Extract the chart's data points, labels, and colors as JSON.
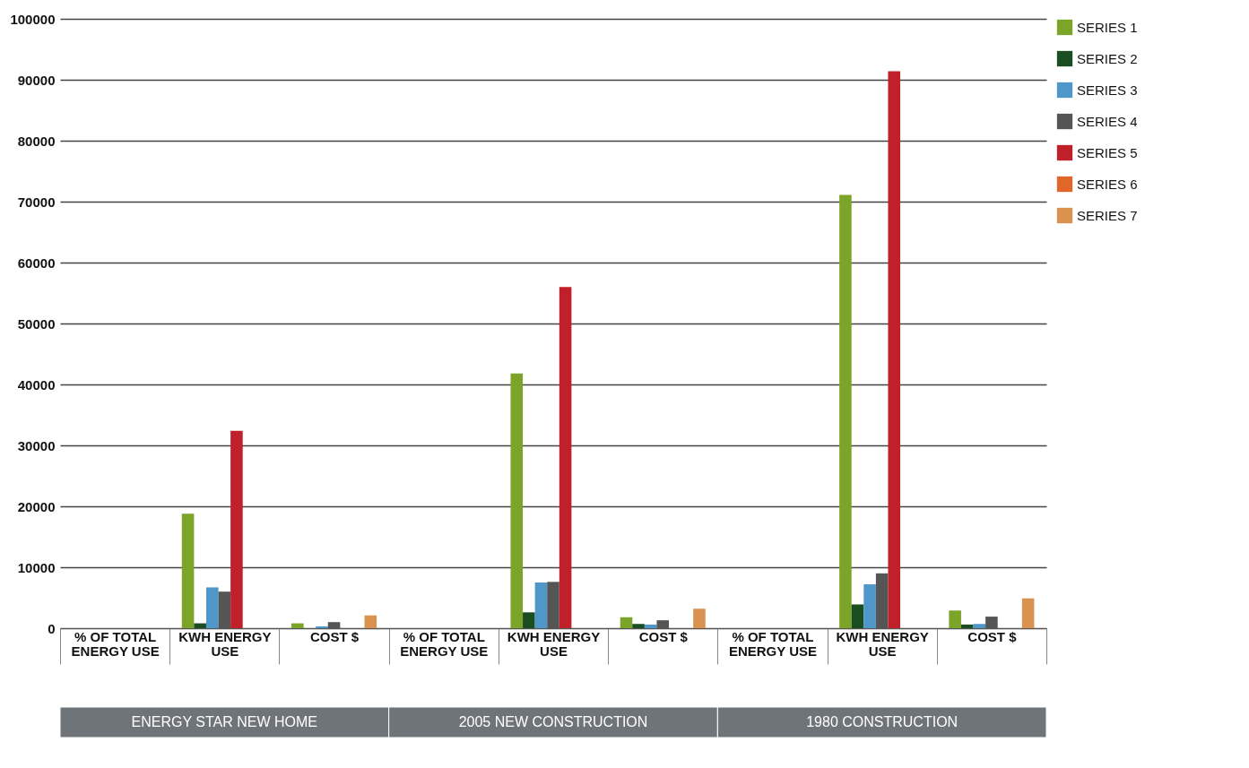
{
  "chart_data": {
    "type": "bar",
    "categories": [
      "% OF TOTAL ENERGY USE",
      "KWH ENERGY USE",
      "COST $",
      "% OF TOTAL ENERGY USE",
      "KWH ENERGY USE",
      "COST $",
      "% OF TOTAL ENERGY USE",
      "KWH ENERGY USE",
      "COST $"
    ],
    "series": [
      {
        "name": "SERIES 1",
        "color": "#7ba428",
        "values": [
          null,
          18800,
          800,
          null,
          41800,
          1800,
          null,
          71100,
          2900
        ]
      },
      {
        "name": "SERIES 2",
        "color": "#1a4d1f",
        "values": [
          null,
          800,
          null,
          null,
          2600,
          700,
          null,
          3900,
          600
        ]
      },
      {
        "name": "SERIES 3",
        "color": "#4f97c8",
        "values": [
          null,
          6700,
          300,
          null,
          7500,
          600,
          null,
          7200,
          700
        ]
      },
      {
        "name": "SERIES 4",
        "color": "#555555",
        "values": [
          null,
          6000,
          1000,
          null,
          7600,
          1300,
          null,
          9000,
          1900
        ]
      },
      {
        "name": "SERIES 5",
        "color": "#c0202a",
        "values": [
          null,
          32400,
          null,
          null,
          56000,
          null,
          null,
          91400,
          null
        ]
      },
      {
        "name": "SERIES 6",
        "color": "#e0662a",
        "values": [
          null,
          null,
          null,
          null,
          null,
          null,
          null,
          null,
          null
        ]
      },
      {
        "name": "SERIES 7",
        "color": "#d99250",
        "values": [
          null,
          null,
          2100,
          null,
          null,
          3200,
          null,
          null,
          4900
        ]
      }
    ],
    "ylim": [
      0,
      100000
    ],
    "yticks": [
      0,
      10000,
      20000,
      30000,
      40000,
      50000,
      60000,
      70000,
      80000,
      90000,
      100000
    ],
    "grid": "y",
    "legend": "top right",
    "annotations": [
      "ENERGY STAR NEW HOME",
      "2005 NEW CONSTRUCTION",
      "1980 CONSTRUCTION"
    ]
  }
}
